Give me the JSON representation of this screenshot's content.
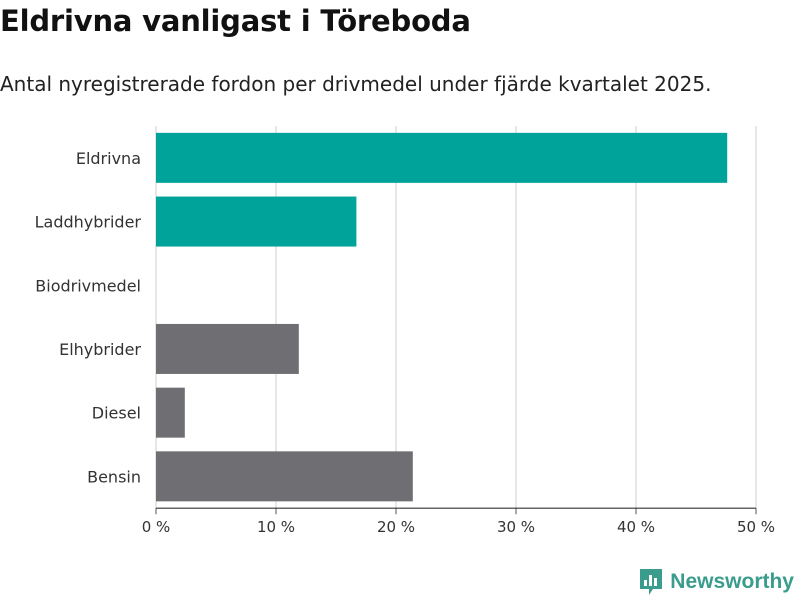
{
  "header": {
    "title": "Eldrivna vanligast i Töreboda",
    "subtitle": "Antal nyregistrerade fordon per drivmedel under fjärde kvartalet 2025."
  },
  "brand": {
    "name": "Newsworthy",
    "color": "#3a9c8c"
  },
  "colors": {
    "highlight": "#00a39a",
    "other": "#6e6e73",
    "grid": "#dddddd"
  },
  "chart_data": {
    "type": "bar",
    "orientation": "horizontal",
    "title": "Eldrivna vanligast i Töreboda",
    "subtitle": "Antal nyregistrerade fordon per drivmedel under fjärde kvartalet 2025.",
    "categories": [
      "Eldrivna",
      "Laddhybrider",
      "Biodrivmedel",
      "Elhybrider",
      "Diesel",
      "Bensin"
    ],
    "values": [
      47.6,
      16.7,
      0,
      11.9,
      2.4,
      21.4
    ],
    "highlighted": [
      true,
      true,
      false,
      false,
      false,
      false
    ],
    "xlim": [
      0,
      50
    ],
    "xticks": [
      0,
      10,
      20,
      30,
      40,
      50
    ],
    "xtick_labels": [
      "0 %",
      "10 %",
      "20 %",
      "30 %",
      "40 %",
      "50 %"
    ],
    "grid": true,
    "xlabel": "",
    "ylabel": ""
  }
}
